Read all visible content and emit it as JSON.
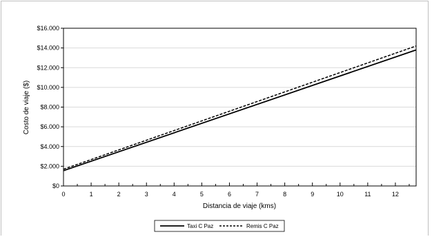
{
  "chart_data": {
    "type": "line",
    "title": "",
    "xlabel": "Distancia de viaje (kms)",
    "ylabel": "Costo de viaje ($)",
    "xlim": [
      0,
      12.75
    ],
    "ylim": [
      0,
      16000
    ],
    "x_ticks": [
      "0",
      "1",
      "2",
      "3",
      "4",
      "5",
      "6",
      "7",
      "8",
      "9",
      "10",
      "11",
      "12"
    ],
    "y_ticks": [
      "$0",
      "$2.000",
      "$4.000",
      "$6.000",
      "$8.000",
      "$10.000",
      "$12.000",
      "$14.000",
      "$16.000"
    ],
    "grid": true,
    "legend_position": "bottom",
    "series": [
      {
        "name": "Taxi C Paz",
        "style": "solid",
        "color": "#000000",
        "x": [
          0,
          12.75
        ],
        "y": [
          1550,
          13800
        ]
      },
      {
        "name": "Remis C Paz",
        "style": "dashed",
        "color": "#000000",
        "x": [
          0,
          12.75
        ],
        "y": [
          1700,
          14200
        ]
      }
    ]
  }
}
